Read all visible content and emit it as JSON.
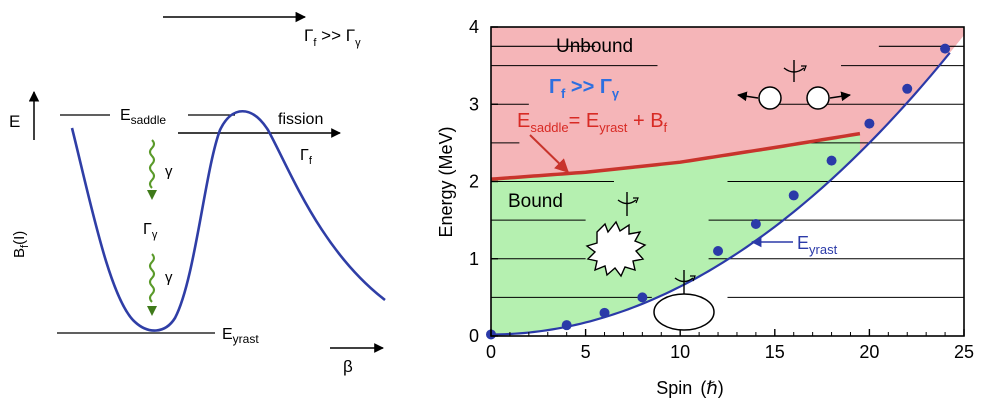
{
  "left_panel": {
    "top_arrow_label": {
      "main": "Γ",
      "sub1": "f",
      "mid": " >> Γ",
      "sub2": "γ"
    },
    "energy_axis_label": "E",
    "potential_axis_label": {
      "main": "B",
      "sub": "f",
      "rest": "(I)"
    },
    "deformation_axis_label": "β",
    "saddle_label": {
      "main": "E",
      "sub": "saddle"
    },
    "yrast_label": {
      "main": "E",
      "sub": "yrast"
    },
    "fission_label": "fission",
    "fission_width": {
      "main": "Γ",
      "sub": "f"
    },
    "gamma_label_1": "γ",
    "gamma_width": {
      "main": "Γ",
      "sub": "γ"
    },
    "gamma_label_2": "γ",
    "colors": {
      "curve": "#2f3ea6",
      "gamma": "#5a9a2a"
    }
  },
  "right_panel": {
    "xlabel": "Spin",
    "xlabel_unit": "(ℏ)",
    "ylabel": "Energy  (MeV)",
    "x_ticks": [
      "0",
      "5",
      "10",
      "15",
      "20",
      "25"
    ],
    "y_ticks": [
      "0",
      "1",
      "2",
      "3",
      "4"
    ],
    "unbound_label": "Unbound",
    "bound_label": "Bound",
    "ratio_label": {
      "main1": "Γ",
      "sub1": "f",
      "mid": " >> Γ",
      "sub2": "γ"
    },
    "saddle_eq": {
      "e": "E",
      "e_sub": "saddle",
      "eq": "= E",
      "y_sub": "yrast",
      "plus": " + B",
      "b_sub": "f"
    },
    "yrast_label": {
      "main": "E",
      "sub": "yrast"
    },
    "colors": {
      "unbound_fill": "#f5b5b8",
      "bound_fill": "#b5f0b0",
      "saddle_line": "#c8342c",
      "yrast_line": "#2b3aa8",
      "ratio_text": "#2d6fe0",
      "eq_text": "#d82a24"
    }
  },
  "chart_data": {
    "type": "line",
    "xlabel": "Spin (ℏ)",
    "ylabel": "Energy (MeV)",
    "xlim": [
      0,
      25
    ],
    "ylim": [
      0,
      4
    ],
    "grid": false,
    "series": [
      {
        "name": "E_yrast",
        "x": [
          0,
          4,
          6,
          8,
          12,
          14,
          16,
          18,
          20,
          22,
          24
        ],
        "y": [
          0.02,
          0.14,
          0.3,
          0.5,
          1.1,
          1.45,
          1.82,
          2.27,
          2.75,
          3.2,
          3.72
        ]
      },
      {
        "name": "E_saddle",
        "x": [
          0,
          5,
          10,
          15,
          19.5
        ],
        "y": [
          2.03,
          2.12,
          2.25,
          2.44,
          2.62
        ]
      }
    ]
  }
}
